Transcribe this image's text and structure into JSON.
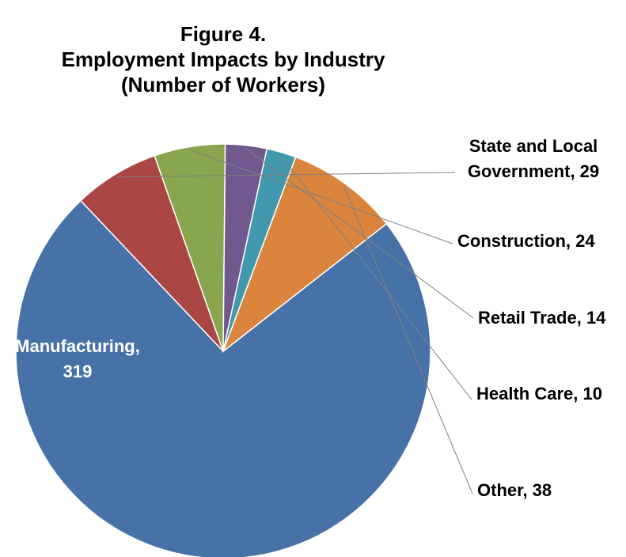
{
  "chart_data": {
    "type": "pie",
    "title_lines": [
      "Figure 4.",
      "Employment Impacts by Industry",
      "(Number of Workers)"
    ],
    "slices": [
      {
        "label_lines": [
          "Manufacturing,",
          "319"
        ],
        "value": 319,
        "color": "#4672A8"
      },
      {
        "label_lines": [
          "State and Local",
          "Government, 29"
        ],
        "value": 29,
        "color": "#AA4643"
      },
      {
        "label_lines": [
          "Construction, 24"
        ],
        "value": 24,
        "color": "#89A54E"
      },
      {
        "label_lines": [
          "Retail Trade, 14"
        ],
        "value": 14,
        "color": "#71588F"
      },
      {
        "label_lines": [
          "Health Care, 10"
        ],
        "value": 10,
        "color": "#4198AF"
      },
      {
        "label_lines": [
          "Other, 38"
        ],
        "value": 38,
        "color": "#DB843D"
      }
    ],
    "start_angle_deg": 52,
    "direction": "clockwise",
    "legend": "none"
  }
}
